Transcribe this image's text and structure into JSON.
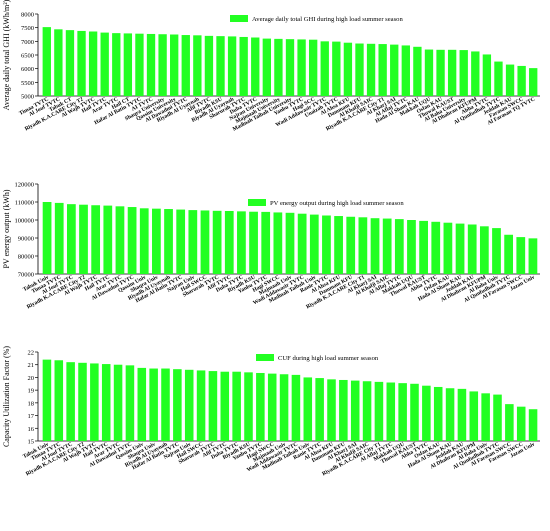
{
  "chart_data": [
    {
      "type": "bar",
      "legend": "Average daily total GHI during high load summer season",
      "ylabel": "Average daily total GHI (kWh/m²)",
      "ylim": [
        5000,
        8000
      ],
      "yticks": [
        5000,
        5500,
        6000,
        6500,
        7000,
        7500,
        8000
      ],
      "bar_color": "#22ff22",
      "grid": false,
      "legend_position": "top-center",
      "categories": [
        "Timaa TVTC",
        "Al Jouf TVTC",
        "Tabuk CT",
        "Riyadh K.A.CARE City T2",
        "Al Wajh TVTC",
        "Hail TVTC",
        "Arar TVTC",
        "Hail CT",
        "Hafar Al Batin TVTC",
        "AI TVTC",
        "Shaqra University",
        "Qassim University",
        "Al Dawadmi TVTC",
        "Riyadh Al Uyaynah",
        "Afif TVTC",
        "Riyadh KSU",
        "Riyadh Al Uyaynah",
        "Sharurah TVTC",
        "Duba TVTC",
        "Najran University",
        "Majmaah University",
        "Madinah Taibah University",
        "Yanbu TVTC",
        "Hagi SCC",
        "Wadi Addawasir TVTC",
        "Unaizah TVTC",
        "Al Ahsa KFU",
        "Dammam KFU",
        "Al Khafji SAIC",
        "Riyadh K.A.CARE City T1",
        "Al Kharj SAI",
        "Al Aflaj TVTC",
        "Hada Al Sham KAU",
        "Makkah UQU",
        "Osfan KAU",
        "Thuwal KAUST",
        "Al Baha University",
        "Al Dhahran KFUPM",
        "Abha TVTC",
        "Al Qunfudhah TVTC",
        "Jeddah KAU",
        "Farasan SWCC",
        "Al Farasan TQ TVTC"
      ],
      "values": [
        7520,
        7440,
        7410,
        7380,
        7360,
        7320,
        7300,
        7290,
        7280,
        7270,
        7260,
        7250,
        7230,
        7220,
        7200,
        7190,
        7180,
        7160,
        7140,
        7100,
        7090,
        7080,
        7070,
        7060,
        7000,
        6990,
        6950,
        6920,
        6910,
        6900,
        6880,
        6850,
        6800,
        6700,
        6690,
        6690,
        6680,
        6630,
        6520,
        6260,
        6150,
        6100,
        6020
      ]
    },
    {
      "type": "bar",
      "legend": "PV energy output during high load summer season",
      "ylabel": "PV energy output (kWh)",
      "ylim": [
        70000,
        120000
      ],
      "yticks": [
        70000,
        80000,
        90000,
        100000,
        110000,
        120000
      ],
      "bar_color": "#22ff22",
      "grid": false,
      "legend_position": "top-center",
      "categories": [
        "Tabuk Univ",
        "Timaa TVTC",
        "Al Jouf TVTC",
        "Riyadh K.A.CARE City T2",
        "Al Wajh TVTC",
        "Hail TVTC",
        "Arar TVTC",
        "Al Dawadmi TVTC",
        "Qassim Univ",
        "Shaqra Univ",
        "Riyadh Al Uyaynah",
        "Hafar Al Batin TVTC",
        "Najran Univ",
        "Hail SWCC",
        "Sharurah TVTC",
        "Afif TVTC",
        "Duba TVTC",
        "Riyadh KSU",
        "Yanbu TVTC",
        "Hagi SWCC",
        "Majmaah Univ",
        "Wadi Addawasir TVTC",
        "Madinah Taibah Univ",
        "Ranie TVTC",
        "Al Ahsa KFU",
        "Dammam KFU",
        "Riyadh K.A.CARE City T1",
        "Al Kharj SAI",
        "Al Khafji SAIC",
        "Al Aflaj TVTC",
        "Makkah UQU",
        "Thuwal KAUST",
        "Abha TVTC",
        "Osfan KAU",
        "Hada Al Sham KAU",
        "Jeddah KAU",
        "Al Dhahran KFUPM",
        "Al Baha Univ",
        "Al Qunfudhah TVTC",
        "Al Farasan SWCC",
        "Jazan Univ"
      ],
      "values": [
        110000,
        109500,
        108800,
        108500,
        108200,
        108000,
        107600,
        107200,
        106500,
        106300,
        106100,
        105800,
        105500,
        105300,
        105100,
        105000,
        104800,
        104600,
        104500,
        104200,
        104000,
        103500,
        103000,
        102500,
        102200,
        101800,
        101500,
        101000,
        100800,
        100500,
        100000,
        99500,
        99000,
        98500,
        98000,
        97500,
        96500,
        95500,
        91800,
        90500,
        89800
      ]
    },
    {
      "type": "bar",
      "legend": "CUF during high load summer season",
      "ylabel": "Capacity Utilization Factor (%)",
      "ylim": [
        15,
        22
      ],
      "yticks": [
        15,
        16,
        17,
        18,
        19,
        20,
        21,
        22
      ],
      "bar_color": "#22ff22",
      "grid": false,
      "legend_position": "top-center",
      "categories": [
        "Tabuk Univ",
        "Timaa TVTC",
        "Al Jouf TVTC",
        "Riyadh K.A.CARE City T2",
        "Al Wajh TVTC",
        "Hail TVTC",
        "Arar TVTC",
        "Al Dawadmi TVTC",
        "Qassim Univ",
        "Shaqra Univ",
        "Riyadh Al Uyaynah",
        "Hafar Al Batin TVTC",
        "Najran Univ",
        "Hail SWCC",
        "Sharurah TVTC",
        "Afif TVTC",
        "Duba TVTC",
        "Riyadh KSU",
        "Yanbu TVTC",
        "Hagi SWCC",
        "Majmaah Univ",
        "Wadi Addawasir TVTC",
        "Madinah Taibah Univ",
        "Ranie TVTC",
        "Al Ahsa KFU",
        "Dammam KFU",
        "Al Kharj SAI",
        "Al Khafji SAIC",
        "Riyadh K.A.CARE City T1",
        "Al Aflaj TVTC",
        "Makkah UQU",
        "Thuwal KAUST",
        "Abha TVTC",
        "Osfan KAU",
        "Hada Al Sham KAU",
        "Jeddah KAU",
        "Al Dhahran KFUPM",
        "Al Baha Univ",
        "Al Qunfudhah TVTC",
        "Al Farasan SWCC",
        "Farasan SWCC",
        "Jazan Univ"
      ],
      "values": [
        21.4,
        21.35,
        21.2,
        21.15,
        21.1,
        21.05,
        21.0,
        20.95,
        20.75,
        20.7,
        20.7,
        20.65,
        20.6,
        20.55,
        20.5,
        20.45,
        20.45,
        20.4,
        20.35,
        20.3,
        20.25,
        20.2,
        20.0,
        19.95,
        19.85,
        19.8,
        19.75,
        19.7,
        19.65,
        19.6,
        19.55,
        19.5,
        19.35,
        19.25,
        19.15,
        19.1,
        18.9,
        18.75,
        18.65,
        17.9,
        17.7,
        17.5
      ]
    }
  ]
}
